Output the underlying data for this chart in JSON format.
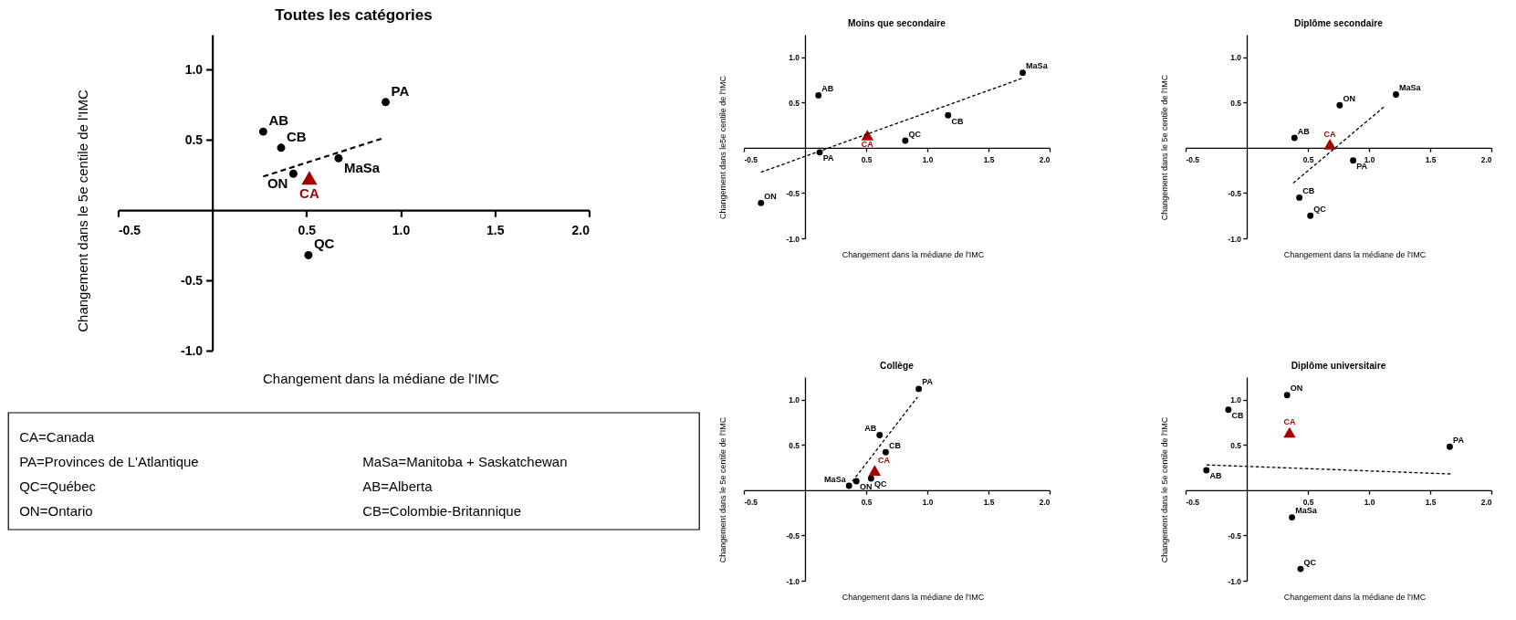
{
  "chart_data": [
    {
      "type": "scatter",
      "title": "Toutes les catégories",
      "xlabel": "Changement dans la médiane de l'IMC",
      "ylabel": "Changement dans le 5e centile de l'IMC",
      "xlim": [
        -0.5,
        2.0
      ],
      "ylim": [
        -1.0,
        1.25
      ],
      "xticks": [
        {
          "value": -0.5,
          "label": "-0.5"
        },
        {
          "value": 0.5,
          "label": "0.5"
        },
        {
          "value": 1,
          "label": "1.0"
        },
        {
          "value": 1.5,
          "label": "1.5"
        },
        {
          "value": 2,
          "label": "2.0"
        }
      ],
      "yticks": [
        {
          "value": -1,
          "label": "-1.0"
        },
        {
          "value": -0.5,
          "label": "-0.5"
        },
        {
          "value": 0.5,
          "label": "0.5"
        },
        {
          "value": 1,
          "label": "1.0"
        }
      ],
      "grid": false,
      "legend": false,
      "series": [
        {
          "color": "#000000",
          "marker": "circle",
          "x": [
            0.27,
            0.365,
            0.43,
            0.67,
            0.92,
            0.51
          ],
          "values": [
            0.56,
            0.445,
            0.26,
            0.37,
            0.77,
            -0.32
          ]
        },
        {
          "name": "CA",
          "color": "#a50000",
          "marker": "triangle",
          "x": [
            0.515
          ],
          "values": [
            0.23
          ]
        },
        {
          "type": "line",
          "color": "#000000",
          "line_style": "dashed",
          "marker": "none",
          "x": [
            0.27,
            0.9
          ],
          "values": [
            0.24,
            0.51
          ]
        }
      ],
      "annotations": [
        {
          "text": "AB",
          "x": 0.27,
          "y": 0.56
        },
        {
          "text": "CB",
          "x": 0.365,
          "y": 0.445
        },
        {
          "text": "ON",
          "x": 0.43,
          "y": 0.26
        },
        {
          "text": "MaSa",
          "x": 0.67,
          "y": 0.37
        },
        {
          "text": "PA",
          "x": 0.92,
          "y": 0.77
        },
        {
          "text": "QC",
          "x": 0.51,
          "y": -0.32
        }
      ]
    },
    {
      "type": "scatter",
      "title": "Moins que secondaire",
      "xlabel": "Changement dans la médiane de l'IMC",
      "ylabel": "Changement dans le5e centile de l'IMC",
      "xlim": [
        -0.5,
        2.0
      ],
      "ylim": [
        -1.0,
        1.25
      ],
      "xticks": [
        {
          "value": -0.5,
          "label": "-0.5"
        },
        {
          "value": 0.5,
          "label": "0.5"
        },
        {
          "value": 1,
          "label": "1.0"
        },
        {
          "value": 1.5,
          "label": "1.5"
        },
        {
          "value": 2,
          "label": "2.0"
        }
      ],
      "yticks": [
        {
          "value": -1,
          "label": "-1.0"
        },
        {
          "value": -0.5,
          "label": "-0.5"
        },
        {
          "value": 0.5,
          "label": "0.5"
        },
        {
          "value": 1,
          "label": "1.0"
        }
      ],
      "grid": false,
      "legend": false,
      "series": [
        {
          "color": "#000000",
          "marker": "circle",
          "x": [
            0.11,
            1.78,
            1.17,
            0.82,
            0.12,
            -0.36
          ],
          "values": [
            0.58,
            0.83,
            0.36,
            0.08,
            -0.05,
            -0.61
          ]
        },
        {
          "name": "CA",
          "color": "#a50000",
          "marker": "triangle",
          "x": [
            0.51
          ],
          "values": [
            0.14
          ]
        },
        {
          "type": "line",
          "color": "#000000",
          "line_style": "dashed",
          "marker": "none",
          "x": [
            -0.36,
            1.78
          ],
          "values": [
            -0.27,
            0.77
          ]
        }
      ],
      "annotations": [
        {
          "text": "AB",
          "x": 0.11,
          "y": 0.58
        },
        {
          "text": "MaSa",
          "x": 1.78,
          "y": 0.83
        },
        {
          "text": "CB",
          "x": 1.17,
          "y": 0.36
        },
        {
          "text": "QC",
          "x": 0.82,
          "y": 0.08
        },
        {
          "text": "PA",
          "x": 0.12,
          "y": -0.05
        },
        {
          "text": "ON",
          "x": -0.36,
          "y": -0.61
        }
      ]
    },
    {
      "type": "scatter",
      "title": "Diplôme secondaire",
      "xlabel": "Changement dans la médiane de l'IMC",
      "ylabel": "Changement dans le 5e centile de l'IMC",
      "xlim": [
        -0.5,
        2.0
      ],
      "ylim": [
        -1.0,
        1.25
      ],
      "xticks": [
        {
          "value": -0.5,
          "label": "-0.5"
        },
        {
          "value": 0.5,
          "label": "0.5"
        },
        {
          "value": 1,
          "label": "1.0"
        },
        {
          "value": 1.5,
          "label": "1.5"
        },
        {
          "value": 2,
          "label": "2.0"
        }
      ],
      "yticks": [
        {
          "value": -1,
          "label": "-1.0"
        },
        {
          "value": -0.5,
          "label": "-0.5"
        },
        {
          "value": 0.5,
          "label": "0.5"
        },
        {
          "value": 1,
          "label": "1.0"
        }
      ],
      "grid": false,
      "legend": false,
      "series": [
        {
          "color": "#000000",
          "marker": "circle",
          "x": [
            0.76,
            1.22,
            0.39,
            0.87,
            0.43,
            0.52
          ],
          "values": [
            0.47,
            0.59,
            0.11,
            -0.14,
            -0.55,
            -0.75
          ]
        },
        {
          "name": "CA",
          "color": "#a50000",
          "marker": "triangle",
          "x": [
            0.68
          ],
          "values": [
            0.04
          ]
        },
        {
          "type": "line",
          "color": "#000000",
          "line_style": "dashed",
          "marker": "none",
          "x": [
            0.38,
            1.12
          ],
          "values": [
            -0.39,
            0.45
          ]
        }
      ],
      "annotations": [
        {
          "text": "ON",
          "x": 0.76,
          "y": 0.47
        },
        {
          "text": "MaSa",
          "x": 1.22,
          "y": 0.59
        },
        {
          "text": "AB",
          "x": 0.39,
          "y": 0.11
        },
        {
          "text": "PA",
          "x": 0.87,
          "y": -0.14
        },
        {
          "text": "CB",
          "x": 0.43,
          "y": -0.55
        },
        {
          "text": "QC",
          "x": 0.52,
          "y": -0.75
        }
      ]
    },
    {
      "type": "other",
      "annotations": [
        "CA=Canada",
        "PA=Provinces de L'Atlantique",
        "MaSa=Manitoba + Saskatchewan",
        "QC=Québec",
        "AB=Alberta",
        "ON=Ontario",
        "CB=Colombie-Britannique"
      ]
    },
    {
      "type": "scatter",
      "title": "Collège",
      "xlabel": "Changement dans la médiane de l'IMC",
      "ylabel": "Changement dans le 5e centile de l'IMC",
      "xlim": [
        -0.5,
        2.0
      ],
      "ylim": [
        -1.0,
        1.25
      ],
      "xticks": [
        {
          "value": -0.5,
          "label": "-0.5"
        },
        {
          "value": 0.5,
          "label": "0.5"
        },
        {
          "value": 1,
          "label": "1.0"
        },
        {
          "value": 1.5,
          "label": "1.5"
        },
        {
          "value": 2,
          "label": "2.0"
        }
      ],
      "yticks": [
        {
          "value": -1,
          "label": "-1.0"
        },
        {
          "value": -0.5,
          "label": "-0.5"
        },
        {
          "value": 0.5,
          "label": "0.5"
        },
        {
          "value": 1,
          "label": "1.0"
        }
      ],
      "grid": false,
      "legend": false,
      "series": [
        {
          "color": "#000000",
          "marker": "circle",
          "x": [
            0.93,
            0.61,
            0.66,
            0.42,
            0.54,
            0.36
          ],
          "values": [
            1.12,
            0.61,
            0.42,
            0.1,
            0.13,
            0.05
          ]
        },
        {
          "name": "CA",
          "color": "#a50000",
          "marker": "triangle",
          "x": [
            0.57
          ],
          "values": [
            0.22
          ]
        },
        {
          "type": "line",
          "color": "#000000",
          "line_style": "dashed",
          "marker": "none",
          "x": [
            0.36,
            0.92
          ],
          "values": [
            0.05,
            1.03
          ]
        }
      ],
      "annotations": [
        {
          "text": "PA",
          "x": 0.93,
          "y": 1.12
        },
        {
          "text": "AB",
          "x": 0.61,
          "y": 0.61
        },
        {
          "text": "CB",
          "x": 0.66,
          "y": 0.42
        },
        {
          "text": "ON",
          "x": 0.42,
          "y": 0.1
        },
        {
          "text": "QC",
          "x": 0.54,
          "y": 0.13
        },
        {
          "text": "MaSa",
          "x": 0.36,
          "y": 0.05
        }
      ]
    },
    {
      "type": "scatter",
      "title": "Diplôme universitaire",
      "xlabel": "Changement dans la médiane de l'IMC",
      "ylabel": "Changement dans le 5e centile de l'IMC",
      "xlim": [
        -0.5,
        2.0
      ],
      "ylim": [
        -1.0,
        1.25
      ],
      "xticks": [
        {
          "value": -0.5,
          "label": "-0.5"
        },
        {
          "value": 0.5,
          "label": "0.5"
        },
        {
          "value": 1,
          "label": "1.0"
        },
        {
          "value": 1.5,
          "label": "1.5"
        },
        {
          "value": 2,
          "label": "2.0"
        }
      ],
      "yticks": [
        {
          "value": -1,
          "label": "-1.0"
        },
        {
          "value": -0.5,
          "label": "-0.5"
        },
        {
          "value": 0.5,
          "label": "0.5"
        },
        {
          "value": 1,
          "label": "1.0"
        }
      ],
      "grid": false,
      "legend": false,
      "series": [
        {
          "color": "#000000",
          "marker": "circle",
          "x": [
            -0.15,
            0.33,
            1.66,
            -0.33,
            0.37,
            0.44
          ],
          "values": [
            0.89,
            1.05,
            0.48,
            0.22,
            -0.3,
            -0.87
          ]
        },
        {
          "name": "CA",
          "color": "#a50000",
          "marker": "triangle",
          "x": [
            0.35
          ],
          "values": [
            0.64
          ]
        },
        {
          "type": "line",
          "color": "#000000",
          "line_style": "dashed",
          "marker": "none",
          "x": [
            -0.33,
            1.67
          ],
          "values": [
            0.28,
            0.18
          ]
        }
      ],
      "annotations": [
        {
          "text": "CB",
          "x": -0.15,
          "y": 0.89
        },
        {
          "text": "ON",
          "x": 0.33,
          "y": 1.05
        },
        {
          "text": "PA",
          "x": 1.66,
          "y": 0.48
        },
        {
          "text": "AB",
          "x": -0.33,
          "y": 0.22
        },
        {
          "text": "MaSa",
          "x": 0.37,
          "y": -0.3
        },
        {
          "text": "QC",
          "x": 0.44,
          "y": -0.87
        }
      ]
    }
  ]
}
